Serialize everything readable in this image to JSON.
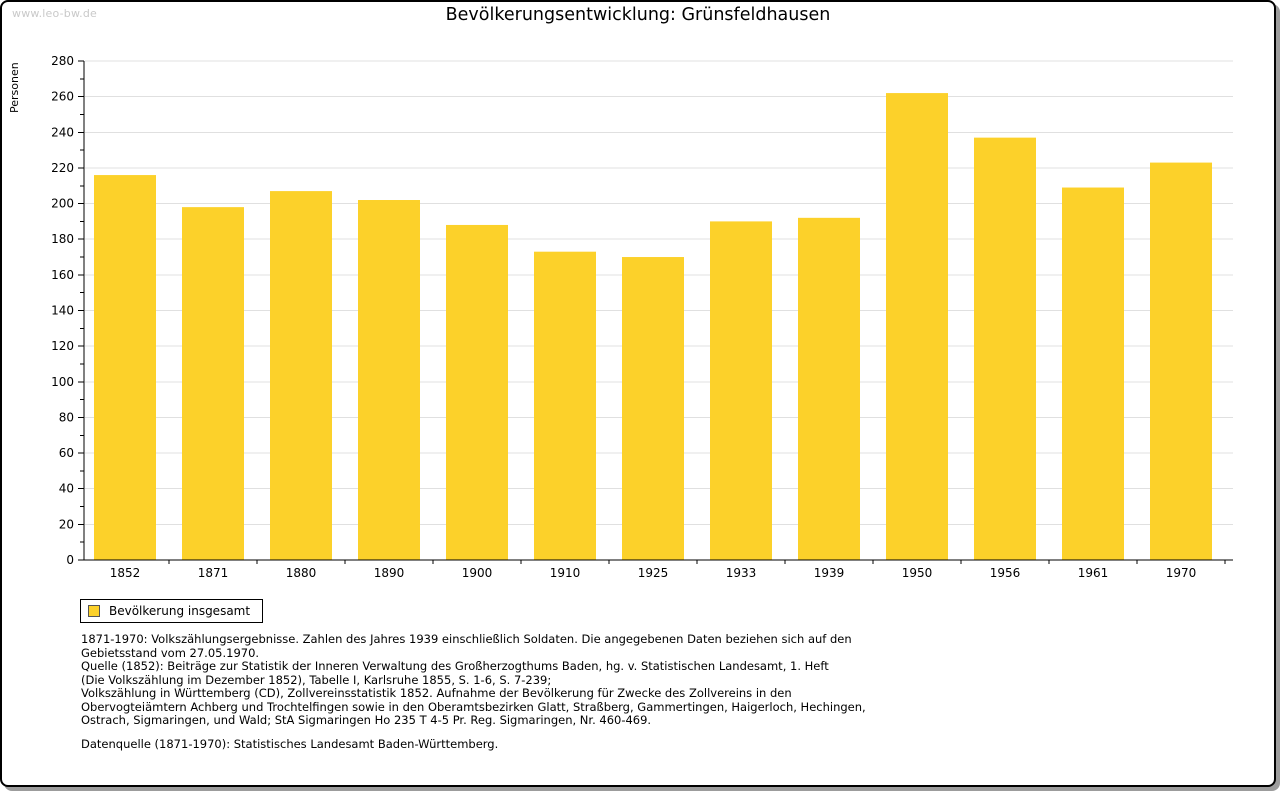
{
  "page": {
    "watermark": "www.leo-bw.de",
    "title": "Bevölkerungsentwicklung: Grünsfeldhausen"
  },
  "chart_data": {
    "type": "bar",
    "title": "Bevölkerungsentwicklung: Grünsfeldhausen",
    "xlabel": "",
    "ylabel": "Personen",
    "categories": [
      "1852",
      "1871",
      "1880",
      "1890",
      "1900",
      "1910",
      "1925",
      "1933",
      "1939",
      "1950",
      "1956",
      "1961",
      "1970"
    ],
    "values": [
      216,
      198,
      207,
      202,
      188,
      173,
      170,
      190,
      192,
      262,
      237,
      209,
      223
    ],
    "ylim": [
      0,
      280
    ],
    "ytick_step": 20,
    "yminor_step": 10,
    "grid": true,
    "bar_color": "#fcd12a",
    "gridline_color": "#e0e0e0",
    "axis_color": "#000000",
    "legend_position": "bottom-left",
    "legend": [
      "Bevölkerung insgesamt"
    ]
  },
  "legend": {
    "label": "Bevölkerung insgesamt"
  },
  "footnotes": {
    "lines": [
      "1871-1970: Volkszählungsergebnisse. Zahlen des Jahres 1939 einschließlich Soldaten. Die angegebenen Daten beziehen sich auf den",
      "Gebietsstand vom 27.05.1970.",
      "Quelle (1852): Beiträge zur Statistik der Inneren Verwaltung des Großherzogthums Baden, hg. v. Statistischen Landesamt, 1. Heft",
      "(Die Volkszählung im Dezember 1852), Tabelle I, Karlsruhe 1855, S. 1-6, S. 7-239;",
      "Volkszählung in Württemberg (CD), Zollvereinsstatistik 1852. Aufnahme der Bevölkerung für Zwecke des Zollvereins in den",
      "Obervogteiämtern Achberg und Trochtelfingen sowie in den Oberamtsbezirken Glatt, Straßberg, Gammertingen, Haigerloch, Hechingen,",
      "Ostrach, Sigmaringen, und Wald; StA Sigmaringen Ho 235 T 4-5 Pr. Reg. Sigmaringen, Nr. 460-469."
    ],
    "datenquelle": "Datenquelle (1871-1970): Statistisches Landesamt Baden-Württemberg."
  }
}
